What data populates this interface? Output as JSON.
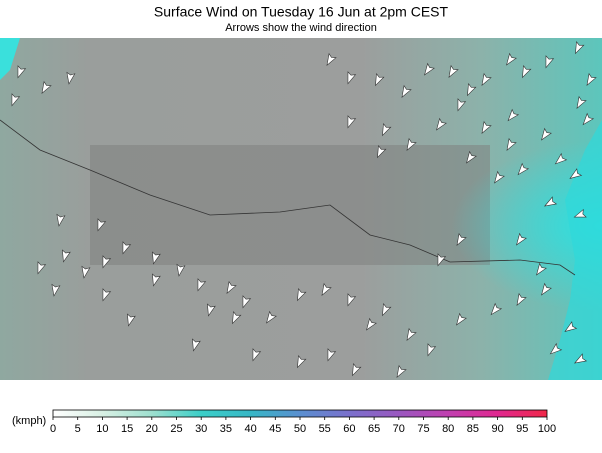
{
  "header": {
    "title": "Surface Wind on Tuesday 16 Jun at 2pm CEST",
    "subtitle": "Arrows show the wind direction"
  },
  "legend": {
    "unit": "(kmph)",
    "ticks": [
      0,
      5,
      10,
      15,
      20,
      25,
      30,
      35,
      40,
      45,
      50,
      55,
      60,
      65,
      70,
      75,
      80,
      85,
      90,
      95,
      100
    ]
  }
}
